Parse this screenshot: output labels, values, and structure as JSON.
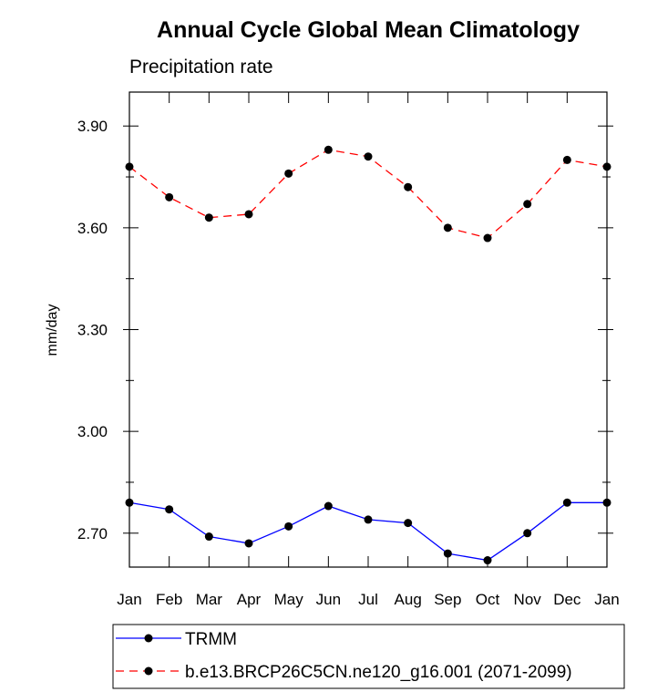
{
  "chart_data": {
    "type": "line",
    "title": "Annual Cycle Global Mean Climatology",
    "subtitle": "Precipitation rate",
    "xlabel": "",
    "ylabel": "mm/day",
    "categories": [
      "Jan",
      "Feb",
      "Mar",
      "Apr",
      "May",
      "Jun",
      "Jul",
      "Aug",
      "Sep",
      "Oct",
      "Nov",
      "Dec",
      "Jan"
    ],
    "ylim": [
      2.6,
      4.0
    ],
    "yticks": [
      2.7,
      3.0,
      3.3,
      3.6,
      3.9
    ],
    "ytick_labels": [
      "2.70",
      "3.00",
      "3.30",
      "3.60",
      "3.90"
    ],
    "grid": false,
    "legend_position": "bottom",
    "series": [
      {
        "name": "TRMM",
        "color": "#0000ff",
        "dash": "solid",
        "marker": "circle",
        "values": [
          2.79,
          2.77,
          2.69,
          2.67,
          2.72,
          2.78,
          2.74,
          2.73,
          2.64,
          2.62,
          2.7,
          2.79,
          2.79
        ]
      },
      {
        "name": "b.e13.BRCP26C5CN.ne120_g16.001 (2071-2099)",
        "color": "#ff0000",
        "dash": "dashed",
        "marker": "circle",
        "values": [
          3.78,
          3.69,
          3.63,
          3.64,
          3.76,
          3.83,
          3.81,
          3.72,
          3.6,
          3.57,
          3.67,
          3.8,
          3.78
        ]
      }
    ]
  }
}
